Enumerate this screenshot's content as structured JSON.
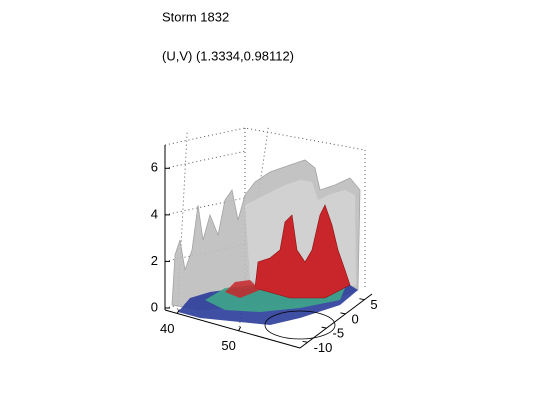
{
  "chart_data": {
    "type": "surface",
    "title": "Storm 1832",
    "subtitle": "(U,V) (1.3334,0.98112)",
    "zlim": [
      0,
      7
    ],
    "zticks": [
      0,
      2,
      4,
      6
    ],
    "xlim": [
      38,
      60
    ],
    "xticks": [
      40,
      50
    ],
    "ylim": [
      -12,
      7
    ],
    "yticks": [
      5,
      0,
      -5,
      -10
    ],
    "grid": true
  }
}
